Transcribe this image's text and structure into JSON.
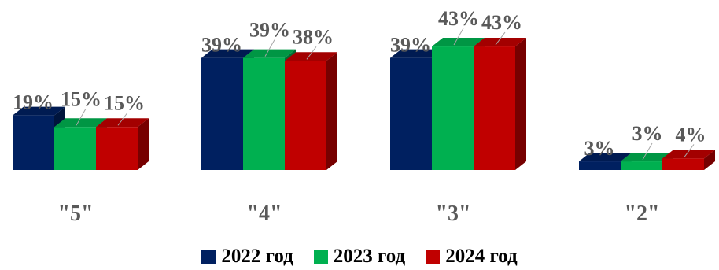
{
  "chart_data": {
    "type": "bar",
    "categories": [
      "\"5\"",
      "\"4\"",
      "\"3\"",
      "\"2\""
    ],
    "series": [
      {
        "name": "2022 год",
        "values": [
          19,
          39,
          39,
          3
        ],
        "labels": [
          "19%",
          "39%",
          "39%",
          "3%"
        ],
        "color": "#002060"
      },
      {
        "name": "2023 год",
        "values": [
          15,
          39,
          43,
          3
        ],
        "labels": [
          "15%",
          "39%",
          "43%",
          "3%"
        ],
        "color": "#00B050"
      },
      {
        "name": "2024 год",
        "values": [
          15,
          38,
          43,
          4
        ],
        "labels": [
          "15%",
          "38%",
          "43%",
          "4%"
        ],
        "color": "#C00000"
      }
    ],
    "ylim": [
      0,
      43
    ],
    "legend_position": "bottom"
  }
}
